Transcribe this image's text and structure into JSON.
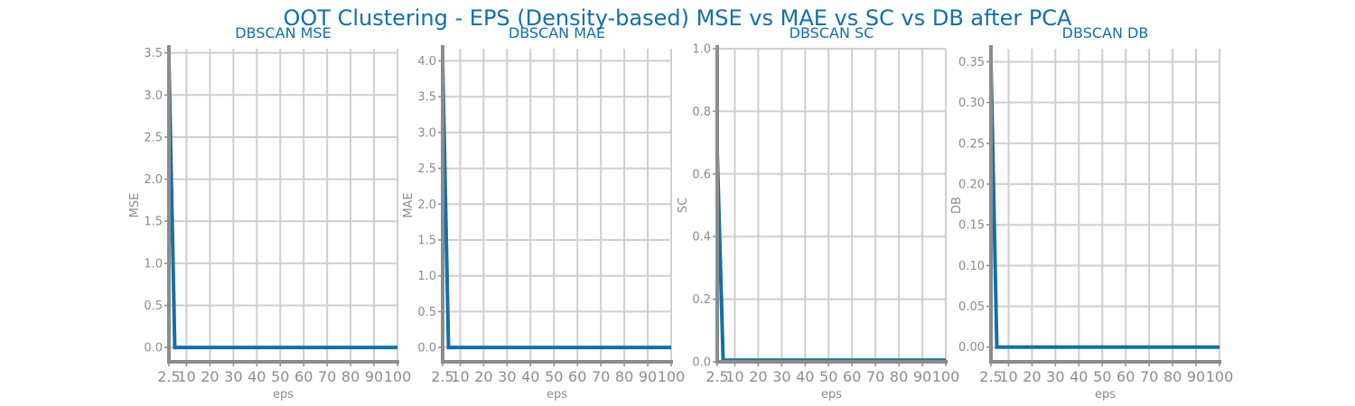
{
  "figure": {
    "title": "OOT Clustering - EPS (Density-based) MSE vs MAE vs SC vs DB after PCA"
  },
  "colors": {
    "series": "#1170aa",
    "title": "#1170aa",
    "axis": "#8c8c8c",
    "grid": "#cfcfcf"
  },
  "chart_data": [
    {
      "type": "line",
      "title": "DBSCAN MSE",
      "xlabel": "eps",
      "ylabel": "MSE",
      "xticks": [
        2.5,
        10,
        20,
        30,
        40,
        50,
        60,
        70,
        80,
        90,
        100
      ],
      "xtick_labels": [
        "2.5",
        "10",
        "20",
        "30",
        "40",
        "50",
        "60",
        "70",
        "80",
        "90",
        "100"
      ],
      "xlim": [
        2.5,
        100
      ],
      "yticks": [
        0.0,
        0.5,
        1.0,
        1.5,
        2.0,
        2.5,
        3.0,
        3.5
      ],
      "ytick_labels": [
        "0.0",
        "0.5",
        "1.0",
        "1.5",
        "2.0",
        "2.5",
        "3.0",
        "3.5"
      ],
      "ylim": [
        -0.17,
        3.55
      ],
      "grid": true,
      "series": [
        {
          "x": [
            2.5,
            5,
            10,
            15,
            20,
            25,
            30,
            35,
            40,
            45,
            50,
            55,
            60,
            65,
            70,
            75,
            80,
            85,
            90,
            95,
            100
          ],
          "y": [
            3.4,
            0,
            0,
            0,
            0,
            0,
            0,
            0,
            0,
            0,
            0,
            0,
            0,
            0,
            0,
            0,
            0,
            0,
            0,
            0,
            0
          ]
        }
      ]
    },
    {
      "type": "line",
      "title": "DBSCAN MAE",
      "xlabel": "eps",
      "ylabel": "MAE",
      "xticks": [
        2.5,
        10,
        20,
        30,
        40,
        50,
        60,
        70,
        80,
        90,
        100
      ],
      "xtick_labels": [
        "2.5",
        "10",
        "20",
        "30",
        "40",
        "50",
        "60",
        "70",
        "80",
        "90",
        "100"
      ],
      "xlim": [
        2.5,
        100
      ],
      "yticks": [
        0.0,
        0.5,
        1.0,
        1.5,
        2.0,
        2.5,
        3.0,
        3.5,
        4.0
      ],
      "ytick_labels": [
        "0.0",
        "0.5",
        "1.0",
        "1.5",
        "2.0",
        "2.5",
        "3.0",
        "3.5",
        "4.0"
      ],
      "ylim": [
        -0.2,
        4.17
      ],
      "grid": true,
      "series": [
        {
          "x": [
            2.5,
            5,
            10,
            15,
            20,
            25,
            30,
            35,
            40,
            45,
            50,
            55,
            60,
            65,
            70,
            75,
            80,
            85,
            90,
            95,
            100
          ],
          "y": [
            4.0,
            0,
            0,
            0,
            0,
            0,
            0,
            0,
            0,
            0,
            0,
            0,
            0,
            0,
            0,
            0,
            0,
            0,
            0,
            0,
            0
          ]
        }
      ]
    },
    {
      "type": "line",
      "title": "DBSCAN SC",
      "xlabel": "eps",
      "ylabel": "SC",
      "xticks": [
        2.5,
        10,
        20,
        30,
        40,
        50,
        60,
        70,
        80,
        90,
        100
      ],
      "xtick_labels": [
        "2.5",
        "10",
        "20",
        "30",
        "40",
        "50",
        "60",
        "70",
        "80",
        "90",
        "100"
      ],
      "xlim": [
        2.5,
        100
      ],
      "yticks": [
        0.0,
        0.2,
        0.4,
        0.6,
        0.8,
        1.0
      ],
      "ytick_labels": [
        "0.0",
        "0.2",
        "0.4",
        "0.6",
        "0.8",
        "1.0"
      ],
      "ylim": [
        0.0,
        1.0
      ],
      "grid": true,
      "series": [
        {
          "x": [
            2.5,
            5,
            10,
            15,
            20,
            25,
            30,
            35,
            40,
            45,
            50,
            55,
            60,
            65,
            70,
            75,
            80,
            85,
            90,
            95,
            100
          ],
          "y": [
            0.67,
            0.005,
            0.005,
            0.005,
            0.005,
            0.005,
            0.005,
            0.005,
            0.005,
            0.005,
            0.005,
            0.005,
            0.005,
            0.005,
            0.005,
            0.005,
            0.005,
            0.005,
            0.005,
            0.005,
            0.005
          ]
        }
      ]
    },
    {
      "type": "line",
      "title": "DBSCAN DB",
      "xlabel": "eps",
      "ylabel": "DB",
      "xticks": [
        2.5,
        10,
        20,
        30,
        40,
        50,
        60,
        70,
        80,
        90,
        100
      ],
      "xtick_labels": [
        "2.5",
        "10",
        "20",
        "30",
        "40",
        "50",
        "60",
        "70",
        "80",
        "90",
        "100"
      ],
      "xlim": [
        2.5,
        100
      ],
      "yticks": [
        0.0,
        0.05,
        0.1,
        0.15,
        0.2,
        0.25,
        0.3,
        0.35
      ],
      "ytick_labels": [
        "0.00",
        "0.05",
        "0.10",
        "0.15",
        "0.20",
        "0.25",
        "0.30",
        "0.35"
      ],
      "ylim": [
        -0.018,
        0.366
      ],
      "grid": true,
      "series": [
        {
          "x": [
            2.5,
            5,
            10,
            15,
            20,
            25,
            30,
            35,
            40,
            45,
            50,
            55,
            60,
            65,
            70,
            75,
            80,
            85,
            90,
            95,
            100
          ],
          "y": [
            0.35,
            0,
            0,
            0,
            0,
            0,
            0,
            0,
            0,
            0,
            0,
            0,
            0,
            0,
            0,
            0,
            0,
            0,
            0,
            0,
            0
          ]
        }
      ]
    }
  ]
}
